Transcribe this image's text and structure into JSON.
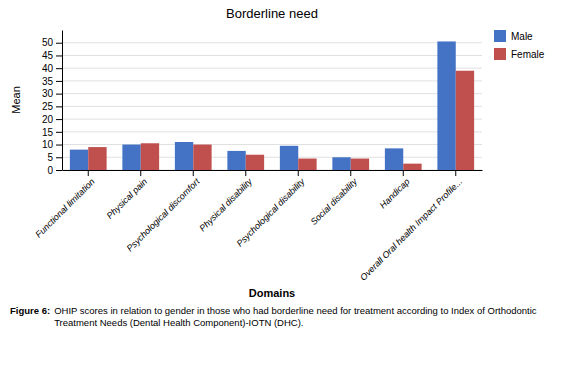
{
  "chart_data": {
    "type": "bar",
    "title": "Borderline need",
    "xlabel": "Domains",
    "ylabel": "Mean",
    "annotations": [
      "Figure 6:",
      "OHIP scores in relation to gender in those who had borderline need for treatment according to Index of Orthodontic Treatment Needs (Dental Health Component)-IOTN (DHC)."
    ],
    "categories": [
      "Functional limitation",
      "Physical pain",
      "Psychological discomfort",
      "Physical disability",
      "Psychological disability",
      "Social disability",
      "Handicap",
      "Overall Oral health Impact Profile..."
    ],
    "series": [
      {
        "name": "Male",
        "color": "#4472C4",
        "values": [
          8.0,
          10.0,
          11.0,
          7.5,
          9.5,
          5.0,
          8.5,
          50.5
        ]
      },
      {
        "name": "Female",
        "color": "#C0504D",
        "values": [
          9.0,
          10.5,
          10.0,
          6.0,
          4.5,
          4.5,
          2.5,
          39.0
        ]
      }
    ],
    "ylim": [
      0,
      55
    ],
    "yticks": [
      0,
      5,
      10,
      15,
      20,
      25,
      30,
      35,
      40,
      45,
      50
    ],
    "grid": true,
    "legend": "right"
  }
}
